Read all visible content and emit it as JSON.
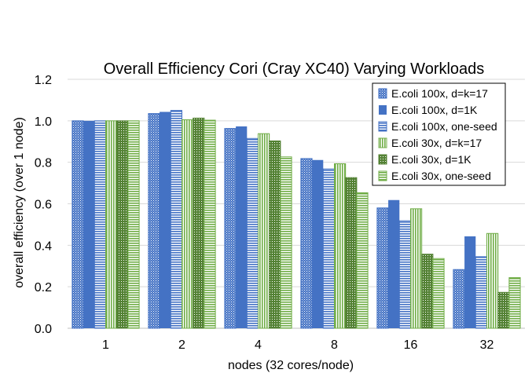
{
  "chart_data": {
    "type": "bar",
    "title": "Overall Efficiency Cori (Cray XC40) Varying Workloads",
    "xlabel": "nodes (32 cores/node)",
    "ylabel": "overall efficiency (over 1 node)",
    "categories": [
      "1",
      "2",
      "4",
      "8",
      "16",
      "32"
    ],
    "ylim": [
      0,
      1.2
    ],
    "yticks": [
      "0.0",
      "0.2",
      "0.4",
      "0.6",
      "0.8",
      "1.0",
      "1.2"
    ],
    "grid": true,
    "legend_position": "top-right",
    "series": [
      {
        "name": "E.coli 100x, d=k=17",
        "values": [
          1.0,
          1.035,
          0.963,
          0.818,
          0.58,
          0.283
        ],
        "color": "#4472C4",
        "pattern": "dots"
      },
      {
        "name": "E.coli 100x, d=1K",
        "values": [
          1.0,
          1.043,
          0.973,
          0.811,
          0.618,
          0.443
        ],
        "color": "#4472C4",
        "pattern": "solid"
      },
      {
        "name": "E.coli 100x, one-seed",
        "values": [
          1.0,
          1.05,
          0.915,
          0.768,
          0.518,
          0.345
        ],
        "color": "#4472C4",
        "pattern": "hlines"
      },
      {
        "name": "E.coli 30x, d=k=17",
        "values": [
          1.0,
          1.005,
          0.938,
          0.793,
          0.576,
          0.457
        ],
        "color": "#70AD47",
        "pattern": "vlines"
      },
      {
        "name": "E.coli 30x, d=1K",
        "values": [
          1.0,
          1.013,
          0.903,
          0.726,
          0.357,
          0.173
        ],
        "color": "#548235",
        "pattern": "dots"
      },
      {
        "name": "E.coli 30x, one-seed",
        "values": [
          1.0,
          1.003,
          0.826,
          0.653,
          0.336,
          0.244
        ],
        "color": "#70AD47",
        "pattern": "hlines"
      }
    ]
  }
}
